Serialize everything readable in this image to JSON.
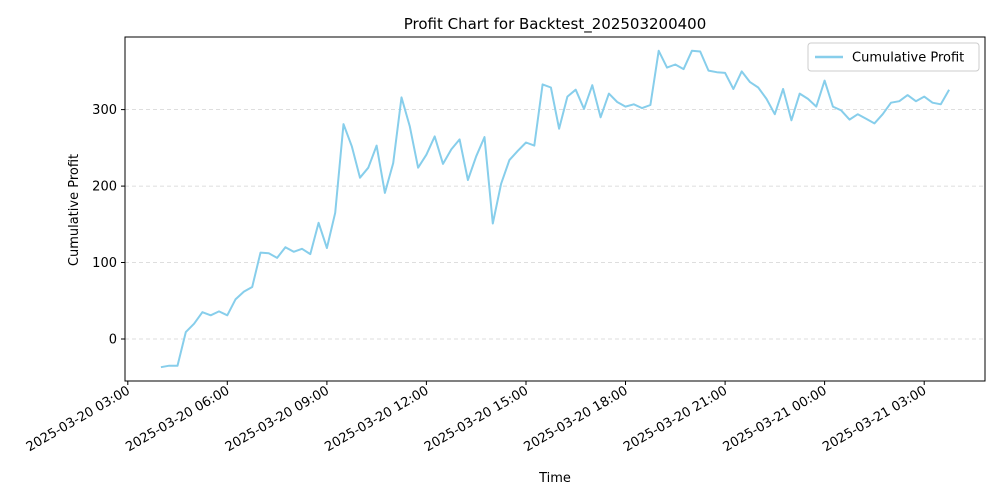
{
  "chart_data": {
    "type": "line",
    "title": "Profit Chart for Backtest_202503200400",
    "xlabel": "Time",
    "ylabel": "Cumulative Profit",
    "grid": "horizontal dashed",
    "legend_position": "upper-right",
    "line_color": "#87ceeb",
    "grid_color": "#d3d3d3",
    "xlim": [
      "2025-03-20 02:55",
      "2025-03-21 04:50"
    ],
    "ylim": [
      -55,
      395
    ],
    "x_ticks": [
      "2025-03-20 03:00",
      "2025-03-20 06:00",
      "2025-03-20 09:00",
      "2025-03-20 12:00",
      "2025-03-20 15:00",
      "2025-03-20 18:00",
      "2025-03-20 21:00",
      "2025-03-21 00:00",
      "2025-03-21 03:00"
    ],
    "y_ticks": [
      0,
      100,
      200,
      300
    ],
    "series": [
      {
        "name": "Cumulative Profit",
        "x": [
          "2025-03-20 04:00",
          "2025-03-20 04:15",
          "2025-03-20 04:30",
          "2025-03-20 04:45",
          "2025-03-20 05:00",
          "2025-03-20 05:15",
          "2025-03-20 05:30",
          "2025-03-20 05:45",
          "2025-03-20 06:00",
          "2025-03-20 06:15",
          "2025-03-20 06:30",
          "2025-03-20 06:45",
          "2025-03-20 07:00",
          "2025-03-20 07:15",
          "2025-03-20 07:30",
          "2025-03-20 07:45",
          "2025-03-20 08:00",
          "2025-03-20 08:15",
          "2025-03-20 08:30",
          "2025-03-20 08:45",
          "2025-03-20 09:00",
          "2025-03-20 09:15",
          "2025-03-20 09:30",
          "2025-03-20 09:45",
          "2025-03-20 10:00",
          "2025-03-20 10:15",
          "2025-03-20 10:30",
          "2025-03-20 10:45",
          "2025-03-20 11:00",
          "2025-03-20 11:15",
          "2025-03-20 11:30",
          "2025-03-20 11:45",
          "2025-03-20 12:00",
          "2025-03-20 12:15",
          "2025-03-20 12:30",
          "2025-03-20 12:45",
          "2025-03-20 13:00",
          "2025-03-20 13:15",
          "2025-03-20 13:30",
          "2025-03-20 13:45",
          "2025-03-20 14:00",
          "2025-03-20 14:15",
          "2025-03-20 14:30",
          "2025-03-20 14:45",
          "2025-03-20 15:00",
          "2025-03-20 15:15",
          "2025-03-20 15:30",
          "2025-03-20 15:45",
          "2025-03-20 16:00",
          "2025-03-20 16:15",
          "2025-03-20 16:30",
          "2025-03-20 16:45",
          "2025-03-20 17:00",
          "2025-03-20 17:15",
          "2025-03-20 17:30",
          "2025-03-20 17:45",
          "2025-03-20 18:00",
          "2025-03-20 18:15",
          "2025-03-20 18:30",
          "2025-03-20 18:45",
          "2025-03-20 19:00",
          "2025-03-20 19:15",
          "2025-03-20 19:30",
          "2025-03-20 19:45",
          "2025-03-20 20:00",
          "2025-03-20 20:15",
          "2025-03-20 20:30",
          "2025-03-20 20:45",
          "2025-03-20 21:00",
          "2025-03-20 21:15",
          "2025-03-20 21:30",
          "2025-03-20 21:45",
          "2025-03-20 22:00",
          "2025-03-20 22:15",
          "2025-03-20 22:30",
          "2025-03-20 22:45",
          "2025-03-20 23:00",
          "2025-03-20 23:15",
          "2025-03-20 23:30",
          "2025-03-20 23:45",
          "2025-03-21 00:00",
          "2025-03-21 00:15",
          "2025-03-21 00:30",
          "2025-03-21 00:45",
          "2025-03-21 01:00",
          "2025-03-21 01:15",
          "2025-03-21 01:30",
          "2025-03-21 01:45",
          "2025-03-21 02:00",
          "2025-03-21 02:15",
          "2025-03-21 02:30",
          "2025-03-21 02:45",
          "2025-03-21 03:00",
          "2025-03-21 03:15",
          "2025-03-21 03:30",
          "2025-03-21 03:45"
        ],
        "y": [
          -37,
          -35,
          -35,
          9,
          20,
          35,
          31,
          36,
          31,
          52,
          62,
          68,
          113,
          112,
          106,
          120,
          114,
          118,
          111,
          152,
          119,
          165,
          281,
          252,
          211,
          224,
          253,
          191,
          230,
          316,
          278,
          224,
          241,
          265,
          229,
          248,
          261,
          208,
          239,
          264,
          151,
          203,
          234,
          246,
          257,
          253,
          333,
          329,
          275,
          317,
          326,
          301,
          332,
          290,
          321,
          310,
          304,
          307,
          302,
          306,
          377,
          355,
          359,
          353,
          377,
          376,
          351,
          349,
          348,
          327,
          350,
          336,
          329,
          314,
          294,
          327,
          286,
          321,
          314,
          304,
          338,
          304,
          299,
          287,
          294,
          288,
          282,
          294,
          309,
          311,
          319,
          311,
          317,
          309,
          307,
          326
        ]
      }
    ]
  }
}
